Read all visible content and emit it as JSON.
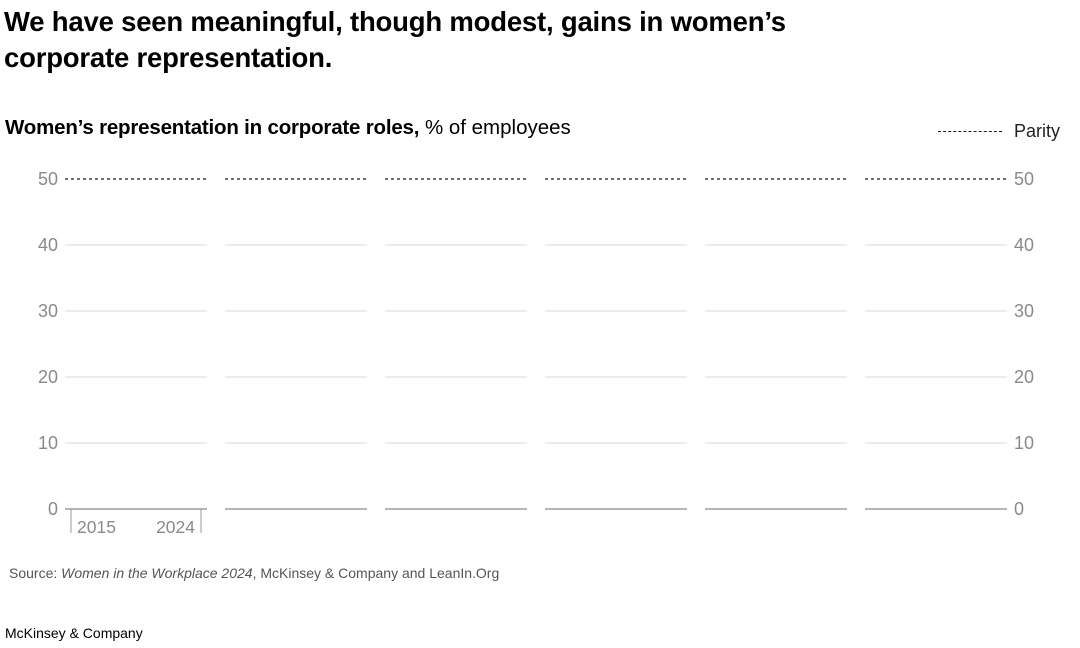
{
  "headline": "We have seen meaningful, though modest, gains in women’s corporate representation.",
  "legend": {
    "label": "Parity"
  },
  "source": {
    "prefix": "Source: ",
    "title": "Women in the Workplace 2024",
    "suffix": ", McKinsey & Company and LeanIn.Org"
  },
  "brand": "McKinsey & Company",
  "chart_data": {
    "type": "line",
    "title": "Women’s representation in corporate roles,",
    "subtitle": "% of employees",
    "ylim": [
      0,
      50
    ],
    "yticks": [
      0,
      10,
      20,
      30,
      40,
      50
    ],
    "x_labels": [
      "2015",
      "2024"
    ],
    "parity_value": 50,
    "panel_count": 6,
    "grid": true,
    "legend_position": "top-right",
    "colors": {
      "parity": "#1a1a2e",
      "grid": "#d9d9d9",
      "baseline": "#6e6e6e",
      "tick": "#8a8a8a"
    }
  }
}
